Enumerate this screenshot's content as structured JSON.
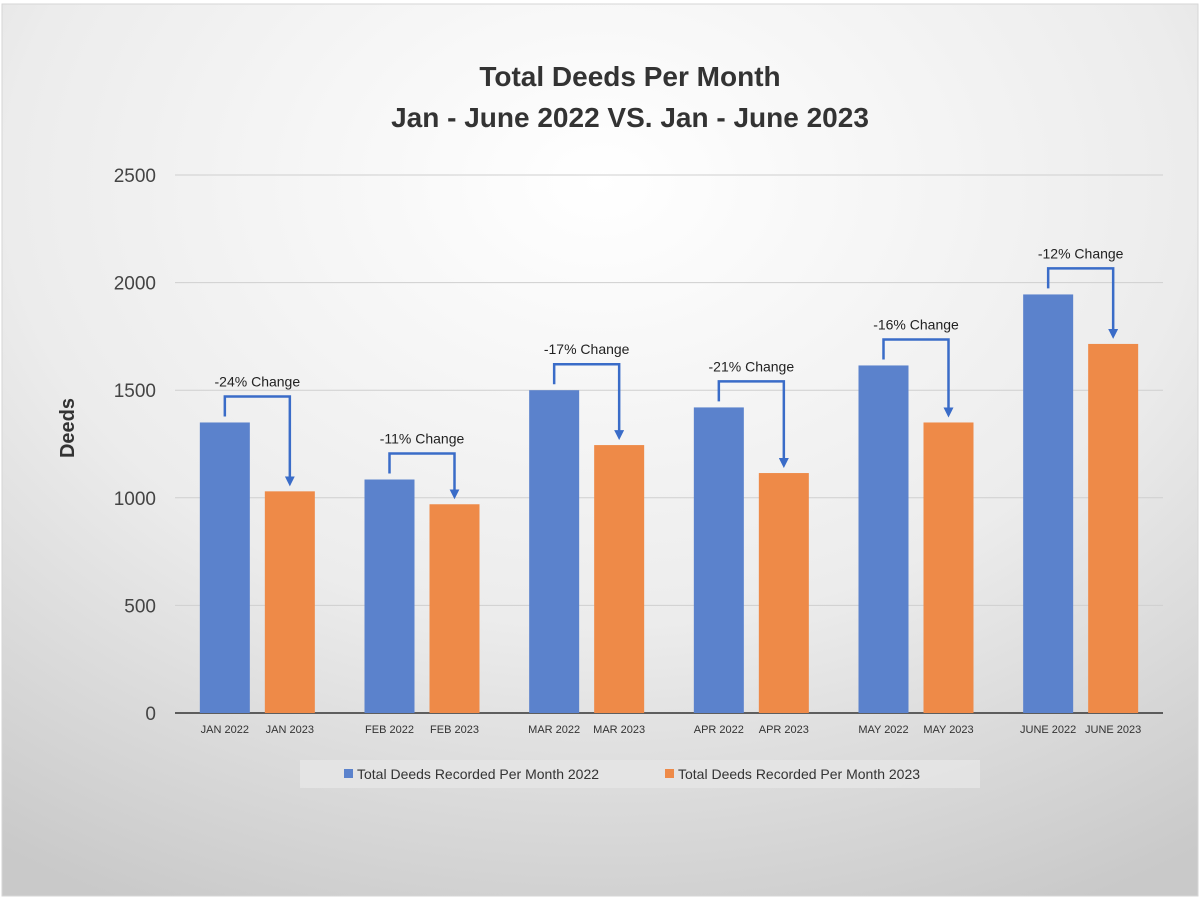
{
  "chart_data": {
    "type": "bar",
    "title": "Total Deeds Per Month",
    "subtitle": "Jan - June 2022 VS. Jan - June 2023",
    "xlabel": "",
    "ylabel": "Deeds",
    "ylim": [
      0,
      2500
    ],
    "yticks": [
      0,
      500,
      1000,
      1500,
      2000,
      2500
    ],
    "grid": true,
    "legend_position": "bottom",
    "groups": [
      {
        "label_2022": "JAN 2022",
        "label_2023": "JAN 2023",
        "value_2022": 1350,
        "value_2023": 1030,
        "change": "-24% Change"
      },
      {
        "label_2022": "FEB 2022",
        "label_2023": "FEB 2023",
        "value_2022": 1085,
        "value_2023": 970,
        "change": "-11% Change"
      },
      {
        "label_2022": "MAR 2022",
        "label_2023": "MAR 2023",
        "value_2022": 1500,
        "value_2023": 1245,
        "change": "-17% Change"
      },
      {
        "label_2022": "APR 2022",
        "label_2023": "APR 2023",
        "value_2022": 1420,
        "value_2023": 1115,
        "change": "-21% Change"
      },
      {
        "label_2022": "MAY 2022",
        "label_2023": "MAY 2023",
        "value_2022": 1615,
        "value_2023": 1350,
        "change": "-16% Change"
      },
      {
        "label_2022": "JUNE 2022",
        "label_2023": "JUNE 2023",
        "value_2022": 1945,
        "value_2023": 1715,
        "change": "-12% Change"
      }
    ],
    "series": [
      {
        "name": "Total Deeds Recorded Per Month 2022",
        "color": "#5B82CC"
      },
      {
        "name": "Total Deeds Recorded Per Month 2023",
        "color": "#EE8A48"
      }
    ],
    "arrow_color": "#3A6CC8"
  }
}
